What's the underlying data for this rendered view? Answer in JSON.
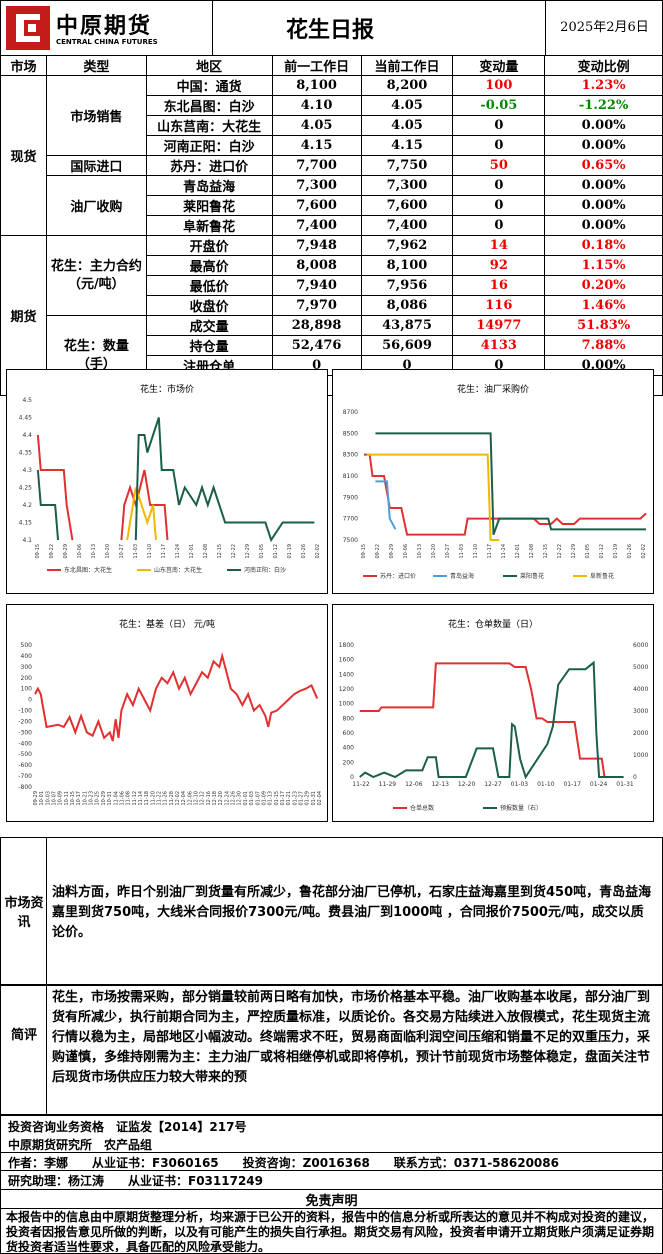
{
  "header": {
    "logo_cn": "中原期货",
    "logo_en": "CENTRAL CHINA FUTURES",
    "title": "花生日报",
    "date": "2025年2月6日"
  },
  "table": {
    "columns": [
      "市场",
      "类型",
      "地区",
      "前一工作日",
      "当前工作日",
      "变动量",
      "变动比例"
    ],
    "sections": {
      "spot": "现货",
      "futures": "期货"
    },
    "types": {
      "sales": "市场销售",
      "import": "国际进口",
      "oil": "油厂收购",
      "contract": "花生：主力合约（元/吨）",
      "quantity": "花生：数量（手）"
    },
    "rows": [
      {
        "region": "中国：通货",
        "prev": "8,100",
        "curr": "8,200",
        "chg": "100",
        "pct": "1.23%",
        "tone": "red"
      },
      {
        "region": "东北昌图：白沙",
        "prev": "4.10",
        "curr": "4.05",
        "chg": "-0.05",
        "pct": "-1.22%",
        "tone": "green"
      },
      {
        "region": "山东莒南：大花生",
        "prev": "4.05",
        "curr": "4.05",
        "chg": "0",
        "pct": "0.00%",
        "tone": "none"
      },
      {
        "region": "河南正阳：白沙",
        "prev": "4.15",
        "curr": "4.15",
        "chg": "0",
        "pct": "0.00%",
        "tone": "none"
      },
      {
        "region": "苏丹：进口价",
        "prev": "7,700",
        "curr": "7,750",
        "chg": "50",
        "pct": "0.65%",
        "tone": "red"
      },
      {
        "region": "青岛益海",
        "prev": "7,300",
        "curr": "7,300",
        "chg": "0",
        "pct": "0.00%",
        "tone": "none"
      },
      {
        "region": "莱阳鲁花",
        "prev": "7,600",
        "curr": "7,600",
        "chg": "0",
        "pct": "0.00%",
        "tone": "none"
      },
      {
        "region": "阜新鲁花",
        "prev": "7,400",
        "curr": "7,400",
        "chg": "0",
        "pct": "0.00%",
        "tone": "none"
      },
      {
        "region": "开盘价",
        "prev": "7,948",
        "curr": "7,962",
        "chg": "14",
        "pct": "0.18%",
        "tone": "red"
      },
      {
        "region": "最高价",
        "prev": "8,008",
        "curr": "8,100",
        "chg": "92",
        "pct": "1.15%",
        "tone": "red"
      },
      {
        "region": "最低价",
        "prev": "7,940",
        "curr": "7,956",
        "chg": "16",
        "pct": "0.20%",
        "tone": "red"
      },
      {
        "region": "收盘价",
        "prev": "7,970",
        "curr": "8,086",
        "chg": "116",
        "pct": "1.46%",
        "tone": "red"
      },
      {
        "region": "成交量",
        "prev": "28,898",
        "curr": "43,875",
        "chg": "14977",
        "pct": "51.83%",
        "tone": "red"
      },
      {
        "region": "持仓量",
        "prev": "52,476",
        "curr": "56,609",
        "chg": "4133",
        "pct": "7.88%",
        "tone": "red"
      },
      {
        "region": "注册仓单",
        "prev": "0",
        "curr": "0",
        "chg": "0",
        "pct": "0.00%",
        "tone": "none"
      },
      {
        "region": "预报合计",
        "prev": "0",
        "curr": "0",
        "chg": "0",
        "pct": "0.00%",
        "tone": "none"
      }
    ]
  },
  "charts": {
    "market": {
      "title": "花生：市场价",
      "yticks": [
        "4.5",
        "4.45",
        "4.4",
        "4.35",
        "4.3",
        "4.25",
        "4.2",
        "4.15",
        "4.1"
      ],
      "xticks": [
        "09-15",
        "09-22",
        "09-29",
        "10-06",
        "10-13",
        "10-20",
        "10-27",
        "11-03",
        "11-10",
        "11-17",
        "11-24",
        "12-01",
        "12-08",
        "12-15",
        "12-22",
        "12-29",
        "01-05",
        "01-12",
        "01-19",
        "01-26",
        "02-02"
      ],
      "legend": [
        "东北昌图：大花生",
        "山东莒南：大花生",
        "河南正阳：白沙"
      ],
      "colors": [
        "#e03030",
        "#f0b800",
        "#1b5e4a"
      ]
    },
    "oil": {
      "title": "花生：油厂采购价",
      "yticks": [
        "8700",
        "8500",
        "8300",
        "8100",
        "7900",
        "7700",
        "7500"
      ],
      "xticks": [
        "09-15",
        "09-22",
        "09-29",
        "10-06",
        "10-13",
        "10-20",
        "10-27",
        "11-03",
        "11-10",
        "11-17",
        "11-24",
        "12-01",
        "12-08",
        "12-15",
        "12-22",
        "12-29",
        "01-05",
        "01-12",
        "01-19",
        "01-26",
        "02-02"
      ],
      "legend": [
        "苏丹：进口价",
        "青岛益海",
        "莱阳鲁花",
        "阜新鲁花"
      ],
      "colors": [
        "#e03030",
        "#4aa0d8",
        "#1b5e4a",
        "#f0b800"
      ]
    },
    "basis": {
      "title": "花生：基差（日） 元/吨",
      "yticks": [
        "500",
        "400",
        "300",
        "200",
        "100",
        "0",
        "-100",
        "-200",
        "-300",
        "-400",
        "-500",
        "-600",
        "-700",
        "-800"
      ],
      "xticks": [
        "09-29",
        "10-01",
        "10-03",
        "10-07",
        "10-09",
        "10-11",
        "10-15",
        "10-17",
        "10-21",
        "10-23",
        "10-25",
        "10-29",
        "10-31",
        "11-04",
        "11-06",
        "11-08",
        "11-12",
        "11-14",
        "11-18",
        "11-20",
        "11-22",
        "11-26",
        "11-28",
        "12-02",
        "12-04",
        "12-06",
        "12-10",
        "12-12",
        "12-16",
        "12-18",
        "12-20",
        "12-24",
        "12-26",
        "12-30",
        "01-01",
        "01-03",
        "01-07",
        "01-09",
        "01-13",
        "01-15",
        "01-17",
        "01-21",
        "01-23",
        "01-27",
        "01-29",
        "01-31",
        "02-04"
      ],
      "color": "#e03030"
    },
    "warehouse": {
      "title": "花生：仓单数量（日）",
      "yticks_left": [
        "1800",
        "1600",
        "1400",
        "1200",
        "1000",
        "800",
        "600",
        "400",
        "200",
        "0"
      ],
      "yticks_right": [
        "6000",
        "5000",
        "4000",
        "3000",
        "2000",
        "1000",
        "0"
      ],
      "xticks": [
        "11-22",
        "11-29",
        "12-06",
        "12-13",
        "12-20",
        "12-27",
        "01-03",
        "01-10",
        "01-17",
        "01-24",
        "01-31"
      ],
      "legend": [
        "仓单总数",
        "预报数量（右）"
      ],
      "colors": [
        "#e03030",
        "#1b5e4a"
      ]
    }
  },
  "info": {
    "label": "市场资讯",
    "text": "油料方面，昨日个别油厂到货量有所减少，鲁花部分油厂已停机，石家庄益海嘉里到货450吨，青岛益海嘉里到货750吨，大线米合同报价7300元/吨。费县油厂到1000吨 ，合同报价7500元/吨，成交以质论价。"
  },
  "comment": {
    "label": "简评",
    "text": "花生，市场按需采购，部分销量较前两日略有加快，市场价格基本平稳。油厂收购基本收尾，部分油厂到货有所减少，执行前期合同为主，严控质量标准，以质论价。各交易方陆续进入放假模式，花生现货主流行情以稳为主，局部地区小幅波动。终端需求不旺，贸易商面临利润空间压缩和销量不足的双重压力，采购谨慎，多维持刚需为主：主力油厂或将相继停机或即将停机，预计节前现货市场整体稳定，盘面关注节后现货市场供应压力较大带来的预"
  },
  "footer": {
    "line1": "投资咨询业务资格　证监发【2014】217号",
    "line2": "中原期货研究所　农产品组",
    "line3": "作者：李娜　　从业证书：F3060165　　投资咨询：Z0016368　　联系方式：0371-58620086",
    "line4": "研究助理：杨江涛　　从业证书：F03117249",
    "disclaimer_title": "免责声明",
    "disclaimer": "本报告中的信息由中原期货整理分析，均来源于已公开的资料，报告中的信息分析或所表达的意见并不构成对投资的建议，投资者因报告意见所做的判断，以及有可能产生的损失自行承担。期货交易有风险，投资者申请开立期货账户须满足证券期货投资者适当性要求，具备匹配的风险承受能力。"
  }
}
